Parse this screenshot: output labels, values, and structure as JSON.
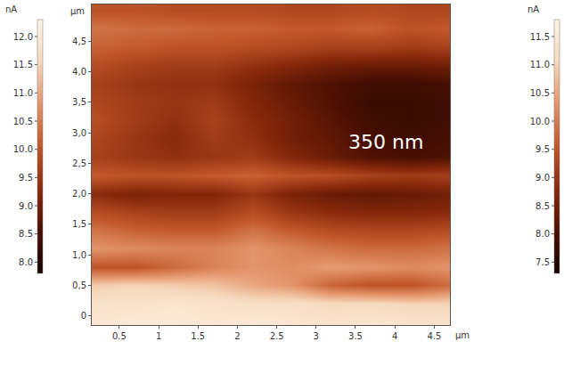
{
  "chart_data": {
    "type": "heatmap",
    "xlabel": "μm",
    "ylabel": "μm",
    "colors": [
      "#140300",
      "#4a0f02",
      "#8a2a0c",
      "#c0562a",
      "#e3946a",
      "#f6d9bd",
      "#fff4e6"
    ],
    "x": [
      0.2,
      0.7,
      1.2,
      1.7,
      2.2,
      2.7,
      3.2,
      3.7,
      4.2,
      4.7
    ],
    "y": [
      -0.1,
      0.2,
      0.5,
      0.8,
      1.1,
      1.4,
      1.7,
      2.0,
      2.3,
      2.6,
      2.9,
      3.2,
      3.5,
      3.8,
      4.1,
      4.4,
      4.7,
      5.0
    ],
    "z": [
      [
        11.9,
        12.0,
        12.0,
        11.9,
        12.0,
        11.9,
        11.8,
        11.9,
        11.8,
        11.8
      ],
      [
        11.8,
        11.8,
        11.9,
        11.8,
        11.7,
        11.7,
        11.6,
        11.6,
        11.5,
        11.5
      ],
      [
        11.4,
        11.5,
        11.4,
        11.3,
        11.0,
        10.8,
        10.2,
        10.0,
        10.0,
        10.3
      ],
      [
        10.0,
        10.0,
        10.3,
        10.6,
        10.8,
        10.7,
        10.9,
        10.8,
        10.7,
        10.8
      ],
      [
        10.8,
        10.7,
        10.6,
        10.6,
        10.8,
        10.6,
        10.4,
        10.3,
        10.3,
        10.4
      ],
      [
        10.4,
        10.2,
        10.1,
        10.1,
        10.4,
        10.1,
        9.9,
        9.8,
        9.8,
        9.9
      ],
      [
        9.9,
        9.7,
        9.6,
        9.6,
        9.9,
        9.5,
        9.3,
        9.2,
        9.2,
        9.3
      ],
      [
        9.3,
        9.1,
        9.2,
        9.2,
        9.5,
        9.1,
        8.9,
        8.8,
        8.9,
        9.0
      ],
      [
        10.1,
        10.0,
        10.0,
        10.1,
        10.2,
        10.0,
        9.9,
        9.7,
        9.6,
        9.7
      ],
      [
        9.7,
        9.5,
        9.4,
        9.5,
        9.6,
        9.2,
        8.9,
        8.6,
        8.5,
        8.6
      ],
      [
        9.8,
        9.5,
        9.3,
        9.6,
        9.4,
        9.0,
        8.8,
        8.5,
        8.4,
        8.5
      ],
      [
        9.9,
        9.6,
        9.4,
        9.7,
        9.3,
        9.0,
        8.7,
        8.4,
        8.3,
        8.4
      ],
      [
        9.8,
        9.6,
        9.5,
        9.6,
        9.2,
        8.9,
        8.6,
        8.3,
        8.3,
        8.4
      ],
      [
        9.7,
        9.5,
        9.4,
        9.4,
        9.1,
        8.8,
        8.6,
        8.4,
        8.4,
        8.5
      ],
      [
        9.9,
        9.7,
        9.6,
        9.6,
        9.4,
        9.2,
        9.0,
        8.9,
        8.9,
        9.0
      ],
      [
        10.2,
        10.1,
        10.0,
        10.0,
        9.9,
        9.8,
        9.7,
        9.7,
        9.6,
        9.7
      ],
      [
        10.4,
        10.3,
        10.3,
        10.2,
        10.2,
        10.1,
        10.1,
        10.2,
        10.0,
        10.1
      ],
      [
        10.0,
        10.0,
        9.9,
        9.9,
        9.9,
        9.8,
        9.8,
        9.9,
        9.8,
        9.8
      ]
    ],
    "xlim": [
      0.15,
      4.7
    ],
    "ylim": [
      -0.15,
      5.1
    ],
    "xticks": [
      0.5,
      1.0,
      1.5,
      2.0,
      2.5,
      3.0,
      3.5,
      4.0,
      4.5
    ],
    "yticks": [
      0,
      {
        "value": 0.5,
        "label": "0,5"
      },
      {
        "value": 1.0,
        "label": "1,0"
      },
      {
        "value": 1.5,
        "label": "1,5"
      },
      {
        "value": 2.0,
        "label": "2,0"
      },
      {
        "value": 2.5,
        "label": "2,5"
      },
      {
        "value": 3.0,
        "label": "3,0"
      },
      {
        "value": 3.5,
        "label": "3,5"
      },
      {
        "value": 4.0,
        "label": "4,0"
      },
      {
        "value": 4.5,
        "label": "4,5"
      }
    ],
    "colorbar": {
      "label": "nA",
      "range": [
        7.8,
        12.3
      ],
      "ticks": [
        {
          "value": 12,
          "label": "12.0"
        },
        11.5,
        {
          "value": 11,
          "label": "11.0"
        },
        10.5,
        {
          "value": 10,
          "label": "10.0"
        },
        9.5,
        {
          "value": 9,
          "label": "9.0"
        },
        8.5,
        {
          "value": 8,
          "label": "8.0"
        }
      ]
    },
    "colorbar2": {
      "label": "nA",
      "range": [
        7.3,
        11.8
      ],
      "ticks": [
        11.5,
        {
          "value": 11,
          "label": "11.0"
        },
        10.5,
        {
          "value": 10,
          "label": "10.0"
        },
        9.5,
        {
          "value": 9,
          "label": "9.0"
        },
        8.5,
        {
          "value": 8,
          "label": "8.0"
        },
        7.5
      ]
    },
    "annotations": [
      {
        "text": "350 nm",
        "x": 3.88,
        "y": 2.84
      }
    ]
  }
}
